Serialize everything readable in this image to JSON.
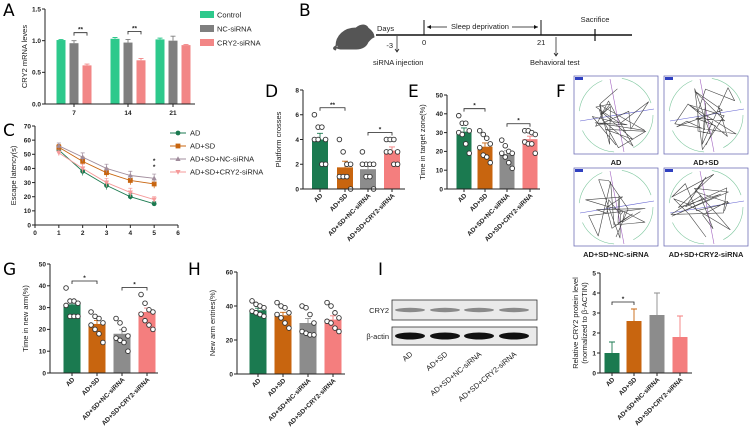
{
  "panels": [
    "A",
    "B",
    "C",
    "D",
    "E",
    "F",
    "G",
    "H",
    "I"
  ],
  "colors": {
    "AD": "#1b7a50",
    "AD+SD": "#c8650f",
    "NC": "#8c8c8c",
    "CRY2": "#f47e7e",
    "control": "#2dc98c",
    "nc_gray": "#7f7f7f",
    "cry2_pink": "#f28686"
  },
  "timeline": {
    "days_label": "Days",
    "sleep_label": "Sleep deprivation",
    "sacrifice_label": "Sacrifice",
    "tick_minus3": "-3",
    "tick_0": "0",
    "tick_21": "21",
    "injection_label": "siRNA injection",
    "behavior_label": "Behavioral test",
    "icon": "mouse-icon"
  },
  "maze_labels": [
    "AD",
    "AD+SD",
    "AD+SD+NC-siRNA",
    "AD+SD+CRY2-siRNA"
  ],
  "western_blot": {
    "bands": [
      "CRY2",
      "β-actin"
    ],
    "lanes": [
      "AD",
      "AD+SD",
      "AD+SD+NC-siRNA",
      "AD+SD+CRY2-siRNA"
    ]
  },
  "chart_data": [
    {
      "panel": "A",
      "type": "bar",
      "categories": [
        "7",
        "14",
        "21"
      ],
      "ylabel": "CRY2 mRNA leves",
      "ylim": [
        0,
        1.5
      ],
      "yticks": [
        "0.0",
        "0.5",
        "1.0",
        "1.5"
      ],
      "legend": "right",
      "series": [
        {
          "name": "Control",
          "values": [
            1.01,
            1.03,
            1.02
          ],
          "errors": [
            0.01,
            0.02,
            0.02
          ]
        },
        {
          "name": "NC-siRNA",
          "values": [
            0.96,
            0.97,
            1.0
          ],
          "errors": [
            0.04,
            0.05,
            0.07
          ]
        },
        {
          "name": "CRY2-siRNA",
          "values": [
            0.61,
            0.69,
            0.93
          ],
          "errors": [
            0.02,
            0.03,
            0.01
          ]
        }
      ],
      "significance": [
        {
          "group": 0,
          "from": 1,
          "to": 2,
          "label": "**"
        },
        {
          "group": 1,
          "from": 1,
          "to": 2,
          "label": "**"
        }
      ]
    },
    {
      "panel": "C",
      "type": "line",
      "x": [
        1,
        2,
        3,
        4,
        5
      ],
      "xticks": [
        "0",
        "1",
        "2",
        "3",
        "4",
        "5",
        "6"
      ],
      "xlim": [
        0,
        6
      ],
      "ylabel": "Escape latency(s)",
      "ylim": [
        0,
        70
      ],
      "yticks": [
        "0",
        "10",
        "20",
        "30",
        "40",
        "50",
        "60",
        "70"
      ],
      "legend": "top-right",
      "series": [
        {
          "name": "AD",
          "marker": "circle",
          "values": [
            53,
            38,
            28,
            20,
            15
          ],
          "errors": [
            2,
            3,
            3,
            2,
            1.5
          ]
        },
        {
          "name": "AD+SD",
          "marker": "square",
          "values": [
            55,
            45,
            37,
            31.5,
            29
          ],
          "errors": [
            2,
            3,
            3,
            3,
            3
          ]
        },
        {
          "name": "AD+SD+NC-siRNA",
          "marker": "triangle",
          "values": [
            56,
            48,
            40,
            35,
            33
          ],
          "errors": [
            2,
            3,
            3,
            3,
            3
          ]
        },
        {
          "name": "AD+SD+CRY2-siRNA",
          "marker": "triangle-down",
          "values": [
            51,
            40,
            30,
            23,
            18
          ],
          "errors": [
            2,
            3,
            3,
            3,
            2
          ]
        }
      ],
      "annotations": [
        "*",
        "*"
      ]
    },
    {
      "panel": "D",
      "type": "bar",
      "categories": [
        "AD",
        "AD+SD",
        "AD+SD+NC-siRNA",
        "AD+SD+CRY2-siRNA"
      ],
      "ylabel": "Platform crosses",
      "ylim": [
        0,
        8
      ],
      "yticks": [
        "0",
        "2",
        "4",
        "6",
        "8"
      ],
      "values": [
        4.0,
        1.75,
        1.6,
        3.1
      ],
      "errors": [
        0.5,
        0.5,
        0.3,
        0.3
      ],
      "points": [
        [
          6,
          5,
          5,
          4,
          4,
          4,
          2,
          2
        ],
        [
          4,
          3,
          2,
          2,
          1,
          1,
          1,
          0
        ],
        [
          3,
          2,
          2,
          2,
          2,
          1,
          1,
          0
        ],
        [
          4,
          4,
          4,
          3,
          3,
          3,
          2,
          2
        ]
      ],
      "significance": [
        {
          "from": 0,
          "to": 1,
          "label": "**"
        },
        {
          "from": 2,
          "to": 3,
          "label": "*"
        }
      ]
    },
    {
      "panel": "E",
      "type": "bar",
      "categories": [
        "AD",
        "AD+SD",
        "AD+SD+NC-siRNA",
        "AD+SD+CRY2-siRNA"
      ],
      "ylabel": "Time in target zone(%)",
      "ylim": [
        0,
        50
      ],
      "yticks": [
        "0",
        "10",
        "20",
        "30",
        "40",
        "50"
      ],
      "values": [
        30.5,
        22.5,
        18.5,
        26.5
      ],
      "errors": [
        2,
        2,
        1.8,
        1.6
      ],
      "points": [
        [
          39,
          35,
          35,
          31,
          30,
          29,
          24,
          19
        ],
        [
          31,
          29,
          27,
          24,
          22,
          18,
          17,
          14
        ],
        [
          26,
          23,
          20,
          19,
          19,
          17,
          14,
          11
        ],
        [
          31,
          31,
          30,
          29,
          25,
          24,
          24,
          19
        ]
      ],
      "significance": [
        {
          "from": 0,
          "to": 1,
          "label": "*"
        },
        {
          "from": 2,
          "to": 3,
          "label": "*"
        }
      ]
    },
    {
      "panel": "G",
      "type": "bar",
      "categories": [
        "AD",
        "AD+SD",
        "AD+SD+NC-siRNA",
        "AD+SD+CRY2-siRNA"
      ],
      "ylabel": "Time in new arm(%)",
      "ylim": [
        0,
        50
      ],
      "yticks": [
        "0",
        "10",
        "20",
        "30",
        "40",
        "50"
      ],
      "values": [
        31.5,
        22.5,
        18,
        28
      ],
      "errors": [
        1.6,
        1.6,
        1.8,
        1.8
      ],
      "points": [
        [
          39,
          33,
          33,
          32,
          31,
          26,
          26,
          26
        ],
        [
          28,
          26,
          25,
          23,
          22,
          20,
          18,
          14
        ],
        [
          25,
          23,
          20,
          17,
          16,
          15,
          14,
          10
        ],
        [
          36,
          32,
          29,
          28,
          27,
          24,
          22,
          20
        ]
      ],
      "significance": [
        {
          "from": 0,
          "to": 1,
          "label": "*"
        },
        {
          "from": 2,
          "to": 3,
          "label": "*"
        }
      ]
    },
    {
      "panel": "H",
      "type": "bar",
      "categories": [
        "AD",
        "AD+SD",
        "AD+SD+NC-siRNA",
        "AD+SD+CRY2-siRNA"
      ],
      "ylabel": "New arm entries(%)",
      "ylim": [
        0,
        60
      ],
      "yticks": [
        "0",
        "20",
        "40",
        "60"
      ],
      "values": [
        37.5,
        34.5,
        30,
        32
      ],
      "errors": [
        1.2,
        1.8,
        2.6,
        2.2
      ],
      "points": [
        [
          43,
          41,
          40,
          39,
          37,
          36,
          35,
          34
        ],
        [
          42,
          40,
          39,
          36,
          35,
          33,
          30,
          27
        ],
        [
          40,
          39,
          35,
          30,
          25,
          24,
          23,
          23
        ],
        [
          42,
          40,
          36,
          33,
          31,
          30,
          27,
          25
        ]
      ],
      "significance": []
    },
    {
      "panel": "I",
      "type": "bar",
      "categories": [
        "AD",
        "AD+SD",
        "AD+SD+NC-siRNA",
        "AD+SD+CRY2-siRNA"
      ],
      "ylabel": [
        "Relative CRY2 protein level",
        "(normalized to β-ACTIN)"
      ],
      "ylim": [
        0,
        5
      ],
      "yticks": [
        "0",
        "1",
        "2",
        "3",
        "4",
        "5"
      ],
      "values": [
        1.0,
        2.6,
        2.9,
        1.8
      ],
      "errors": [
        0.55,
        0.6,
        1.1,
        1.05
      ],
      "significance": [
        {
          "from": 0,
          "to": 1,
          "label": "*"
        }
      ]
    }
  ]
}
